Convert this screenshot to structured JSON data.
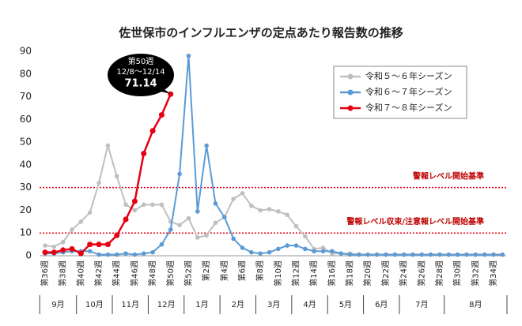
{
  "chart_data": {
    "type": "line",
    "title": "佐世保市のインフルエンザの定点あたり報告数の推移",
    "categories": [
      "第36週",
      null,
      "第38週",
      null,
      "第40週",
      null,
      "第42週",
      null,
      "第44週",
      null,
      "第46週",
      null,
      "第48週",
      null,
      "第50週",
      null,
      "第52週",
      null,
      "第2週",
      null,
      "第4週",
      null,
      "第6週",
      null,
      "第8週",
      null,
      "第10週",
      null,
      "第12週",
      null,
      "第14週",
      null,
      "第16週",
      null,
      "第18週",
      null,
      "第20週",
      null,
      "第22週",
      null,
      "第24週",
      null,
      "第26週",
      null,
      "第28週",
      null,
      "第30週",
      null,
      "第32週",
      null,
      "第34週",
      null
    ],
    "months": [
      "9月",
      "10月",
      "11月",
      "12月",
      "1月",
      "2月",
      "3月",
      "4月",
      "5月",
      "6月",
      "7月",
      "8月"
    ],
    "series": [
      {
        "name": "令和５～６年シーズン",
        "color": "#bfbfbf",
        "values": [
          4.5,
          4,
          6,
          11.5,
          15,
          19,
          32,
          48.5,
          35,
          22.5,
          20,
          22.5,
          22.5,
          22.5,
          15,
          13.5,
          16.5,
          8,
          9,
          14.5,
          17,
          25,
          27.5,
          22,
          20,
          20.5,
          19.5,
          18,
          13,
          8.5,
          3,
          3.5,
          1,
          1,
          1,
          0.5,
          0.5,
          0.5,
          0.5,
          0.5,
          0.5,
          0.5,
          0.5,
          0.5,
          0.5,
          0.5,
          0.5,
          0.5,
          0.5,
          0.5,
          0.5,
          0.5
        ]
      },
      {
        "name": "令和６～７年シーズン",
        "color": "#5b9bd5",
        "values": [
          1,
          1,
          1.5,
          2,
          2,
          2,
          0.5,
          0.5,
          0.5,
          1,
          0.5,
          1,
          1.5,
          5,
          11.5,
          36,
          88,
          19.5,
          48.5,
          23,
          17,
          7.5,
          3.5,
          1.5,
          1,
          1.5,
          3,
          4.5,
          4.5,
          3,
          2,
          2,
          2,
          1,
          0.5,
          0.5,
          0.5,
          0.5,
          0.5,
          0.5,
          0.5,
          0.5,
          0.5,
          0.5,
          0.5,
          0.5,
          0.5,
          0.5,
          0.5,
          0.5,
          0.5,
          0.5
        ]
      },
      {
        "name": "令和７～８年シーズン",
        "color": "#e60012",
        "values": [
          1.5,
          1.5,
          2.5,
          3,
          1,
          5,
          5,
          5,
          9,
          16,
          24,
          45,
          55,
          62,
          71.14,
          null,
          null,
          null,
          null,
          null,
          null,
          null,
          null,
          null,
          null,
          null,
          null,
          null,
          null,
          null,
          null,
          null,
          null,
          null,
          null,
          null,
          null,
          null,
          null,
          null,
          null,
          null,
          null,
          null,
          null,
          null,
          null,
          null,
          null,
          null,
          null,
          null
        ]
      }
    ],
    "reference_lines": [
      {
        "value": 30,
        "label": "警報レベル開始基準"
      },
      {
        "value": 10,
        "label": "警報レベル収束/注意報レベル開始基準"
      }
    ],
    "annotation": {
      "week": "第50週",
      "dates": "12/8～12/14",
      "value": "71.14"
    },
    "ylim": [
      0,
      90
    ],
    "yticks": [
      0,
      10,
      20,
      30,
      40,
      50,
      60,
      70,
      80,
      90
    ]
  }
}
